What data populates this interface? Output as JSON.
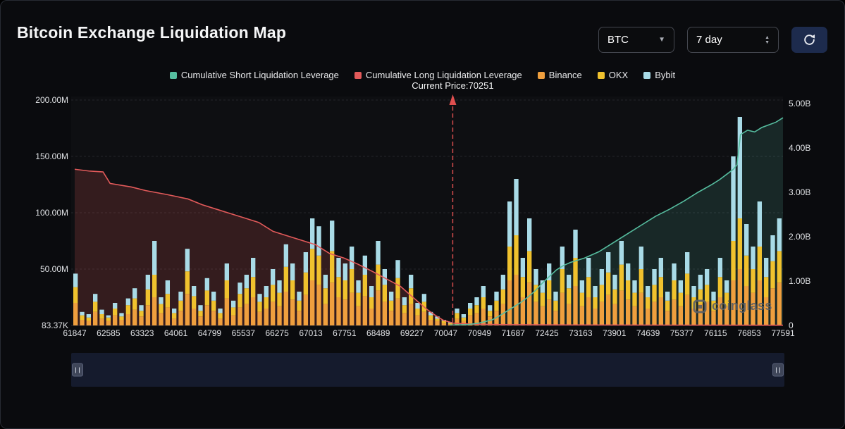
{
  "window": {
    "title": "Bitcoin Exchange Liquidation Map"
  },
  "controls": {
    "symbol_select": {
      "value": "BTC"
    },
    "period_select": {
      "value": "7 day"
    }
  },
  "icons": {
    "symbol_caret": "chevron-down",
    "period_stepper": "up-down-chevrons",
    "refresh": "refresh-circular-arrow",
    "watermark_logo": "coinglass-logo",
    "slider_handles": "grip-vertical"
  },
  "legend": [
    {
      "label": "Cumulative Short Liquidation Leverage",
      "color": "#56bd9f"
    },
    {
      "label": "Cumulative Long Liquidation Leverage",
      "color": "#e25a5a"
    },
    {
      "label": "Binance",
      "color": "#ef9f3e"
    },
    {
      "label": "OKX",
      "color": "#f0c22e"
    },
    {
      "label": "Bybit",
      "color": "#a9dbe7"
    }
  ],
  "current_price_label": "Current Price:70251",
  "watermark": "coinglass",
  "colors": {
    "short_line": "#56bd9f",
    "long_line": "#e25a5a",
    "binance": "#ef9f3e",
    "okx": "#f0c22e",
    "bybit": "#a9dbe7",
    "current_price_line": "#e04f4f",
    "panel_bg": "#0a0b0e",
    "slider_bg": "#151b2d",
    "refresh_button_bg": "#1d2b4d"
  },
  "chart_data": {
    "type": "bar",
    "title": "Bitcoin Exchange Liquidation Map",
    "grid": "horizontal-dashed",
    "legend_position": "top",
    "current_price": 70251,
    "price_range": [
      61847,
      77591
    ],
    "x_ticks": [
      "61847",
      "62585",
      "63323",
      "64061",
      "64799",
      "65537",
      "66275",
      "67013",
      "67751",
      "68489",
      "69227",
      "70047",
      "70949",
      "71687",
      "72425",
      "73163",
      "73901",
      "74639",
      "75377",
      "76115",
      "76853",
      "77591"
    ],
    "left_axis": {
      "ticks": [
        "200.00M",
        "150.00M",
        "100.00M",
        "50.00M"
      ],
      "tick_values_m": [
        200,
        150,
        100,
        50
      ],
      "bottom_label": "83.37K",
      "max_m": 200
    },
    "right_axis": {
      "ticks": [
        "5.00B",
        "4.00B",
        "3.00B",
        "2.00B",
        "1.00B",
        "0"
      ],
      "tick_values_b": [
        5,
        4,
        3,
        2,
        1,
        0
      ],
      "max_b": 5
    },
    "bar_series_order": [
      "Binance",
      "OKX",
      "Bybit"
    ],
    "bar_colors": [
      "#ef9f3e",
      "#f0c22e",
      "#a9dbe7"
    ],
    "bars_m": [
      [
        20,
        14,
        12
      ],
      [
        5,
        4,
        3
      ],
      [
        4,
        3,
        3
      ],
      [
        12,
        9,
        7
      ],
      [
        6,
        4,
        4
      ],
      [
        4,
        3,
        2
      ],
      [
        9,
        6,
        5
      ],
      [
        5,
        3,
        3
      ],
      [
        10,
        8,
        6
      ],
      [
        14,
        10,
        9
      ],
      [
        8,
        5,
        5
      ],
      [
        18,
        14,
        13
      ],
      [
        25,
        20,
        30
      ],
      [
        11,
        8,
        6
      ],
      [
        16,
        12,
        12
      ],
      [
        6,
        5,
        4
      ],
      [
        13,
        9,
        8
      ],
      [
        28,
        20,
        20
      ],
      [
        15,
        11,
        9
      ],
      [
        8,
        5,
        5
      ],
      [
        18,
        13,
        11
      ],
      [
        13,
        9,
        8
      ],
      [
        6,
        5,
        4
      ],
      [
        24,
        16,
        15
      ],
      [
        9,
        7,
        6
      ],
      [
        16,
        12,
        10
      ],
      [
        19,
        14,
        12
      ],
      [
        25,
        18,
        17
      ],
      [
        12,
        9,
        7
      ],
      [
        15,
        10,
        10
      ],
      [
        21,
        15,
        14
      ],
      [
        17,
        12,
        11
      ],
      [
        30,
        22,
        20
      ],
      [
        23,
        17,
        15
      ],
      [
        13,
        9,
        8
      ],
      [
        27,
        20,
        18
      ],
      [
        40,
        28,
        27
      ],
      [
        36,
        26,
        26
      ],
      [
        19,
        14,
        12
      ],
      [
        38,
        28,
        27
      ],
      [
        25,
        18,
        17
      ],
      [
        23,
        17,
        15
      ],
      [
        29,
        21,
        20
      ],
      [
        17,
        12,
        11
      ],
      [
        26,
        19,
        17
      ],
      [
        15,
        10,
        10
      ],
      [
        31,
        23,
        21
      ],
      [
        21,
        15,
        14
      ],
      [
        13,
        9,
        8
      ],
      [
        24,
        18,
        16
      ],
      [
        11,
        7,
        7
      ],
      [
        19,
        14,
        12
      ],
      [
        9,
        6,
        5
      ],
      [
        12,
        9,
        7
      ],
      [
        5,
        4,
        3
      ],
      [
        4,
        2,
        2
      ],
      [
        2,
        2,
        1
      ],
      [
        1,
        1,
        1
      ],
      [
        6,
        5,
        4
      ],
      [
        4,
        3,
        3
      ],
      [
        9,
        6,
        5
      ],
      [
        11,
        7,
        7
      ],
      [
        15,
        10,
        10
      ],
      [
        8,
        5,
        5
      ],
      [
        13,
        9,
        8
      ],
      [
        19,
        13,
        13
      ],
      [
        40,
        30,
        40
      ],
      [
        45,
        35,
        50
      ],
      [
        25,
        18,
        17
      ],
      [
        38,
        28,
        29
      ],
      [
        21,
        15,
        14
      ],
      [
        17,
        12,
        11
      ],
      [
        23,
        17,
        15
      ],
      [
        13,
        9,
        8
      ],
      [
        29,
        21,
        20
      ],
      [
        19,
        14,
        12
      ],
      [
        35,
        25,
        25
      ],
      [
        17,
        12,
        11
      ],
      [
        25,
        18,
        17
      ],
      [
        15,
        10,
        10
      ],
      [
        21,
        15,
        14
      ],
      [
        27,
        20,
        18
      ],
      [
        19,
        13,
        13
      ],
      [
        31,
        23,
        21
      ],
      [
        23,
        17,
        15
      ],
      [
        17,
        12,
        11
      ],
      [
        29,
        21,
        20
      ],
      [
        15,
        10,
        10
      ],
      [
        21,
        15,
        14
      ],
      [
        25,
        18,
        17
      ],
      [
        13,
        9,
        8
      ],
      [
        23,
        17,
        15
      ],
      [
        17,
        12,
        11
      ],
      [
        27,
        19,
        19
      ],
      [
        15,
        10,
        10
      ],
      [
        19,
        13,
        13
      ],
      [
        21,
        15,
        14
      ],
      [
        13,
        9,
        8
      ],
      [
        25,
        18,
        17
      ],
      [
        17,
        12,
        11
      ],
      [
        40,
        35,
        75
      ],
      [
        50,
        45,
        90
      ],
      [
        35,
        27,
        28
      ],
      [
        29,
        21,
        20
      ],
      [
        40,
        30,
        40
      ],
      [
        25,
        18,
        17
      ],
      [
        33,
        24,
        23
      ],
      [
        38,
        28,
        29
      ]
    ],
    "lines": [
      {
        "name": "Cumulative Long Liquidation Leverage",
        "color": "#e25a5a",
        "fill": "rgba(226,90,90,0.18)",
        "points": [
          [
            0,
            3.52
          ],
          [
            0.02,
            3.48
          ],
          [
            0.04,
            3.46
          ],
          [
            0.05,
            3.2
          ],
          [
            0.08,
            3.12
          ],
          [
            0.1,
            3.04
          ],
          [
            0.13,
            2.95
          ],
          [
            0.16,
            2.85
          ],
          [
            0.18,
            2.72
          ],
          [
            0.2,
            2.62
          ],
          [
            0.22,
            2.52
          ],
          [
            0.24,
            2.42
          ],
          [
            0.26,
            2.32
          ],
          [
            0.28,
            2.12
          ],
          [
            0.3,
            2.02
          ],
          [
            0.32,
            1.92
          ],
          [
            0.34,
            1.82
          ],
          [
            0.35,
            1.72
          ],
          [
            0.36,
            1.62
          ],
          [
            0.38,
            1.52
          ],
          [
            0.4,
            1.38
          ],
          [
            0.42,
            1.22
          ],
          [
            0.44,
            1.05
          ],
          [
            0.46,
            0.88
          ],
          [
            0.47,
            0.74
          ],
          [
            0.48,
            0.6
          ],
          [
            0.49,
            0.46
          ],
          [
            0.5,
            0.33
          ],
          [
            0.51,
            0.22
          ],
          [
            0.52,
            0.12
          ],
          [
            0.535,
            0.05
          ],
          [
            0.56,
            0.03
          ],
          [
            0.6,
            0.02
          ],
          [
            0.7,
            0.012
          ],
          [
            0.85,
            0.008
          ],
          [
            1,
            0.005
          ]
        ]
      },
      {
        "name": "Cumulative Short Liquidation Leverage",
        "color": "#56bd9f",
        "fill": "rgba(86,189,159,0.15)",
        "points": [
          [
            0.53,
            0.01
          ],
          [
            0.555,
            0.02
          ],
          [
            0.57,
            0.05
          ],
          [
            0.58,
            0.09
          ],
          [
            0.59,
            0.13
          ],
          [
            0.6,
            0.22
          ],
          [
            0.61,
            0.32
          ],
          [
            0.62,
            0.42
          ],
          [
            0.63,
            0.52
          ],
          [
            0.64,
            0.64
          ],
          [
            0.65,
            0.78
          ],
          [
            0.66,
            0.95
          ],
          [
            0.67,
            1.1
          ],
          [
            0.68,
            1.25
          ],
          [
            0.69,
            1.35
          ],
          [
            0.7,
            1.42
          ],
          [
            0.72,
            1.52
          ],
          [
            0.74,
            1.66
          ],
          [
            0.76,
            1.86
          ],
          [
            0.78,
            2.06
          ],
          [
            0.8,
            2.26
          ],
          [
            0.82,
            2.46
          ],
          [
            0.84,
            2.62
          ],
          [
            0.86,
            2.8
          ],
          [
            0.88,
            3.0
          ],
          [
            0.9,
            3.18
          ],
          [
            0.91,
            3.28
          ],
          [
            0.92,
            3.4
          ],
          [
            0.93,
            3.52
          ],
          [
            0.935,
            3.62
          ],
          [
            0.94,
            4.3
          ],
          [
            0.95,
            4.4
          ],
          [
            0.96,
            4.36
          ],
          [
            0.97,
            4.46
          ],
          [
            0.98,
            4.52
          ],
          [
            0.99,
            4.58
          ],
          [
            1,
            4.68
          ]
        ]
      }
    ]
  }
}
